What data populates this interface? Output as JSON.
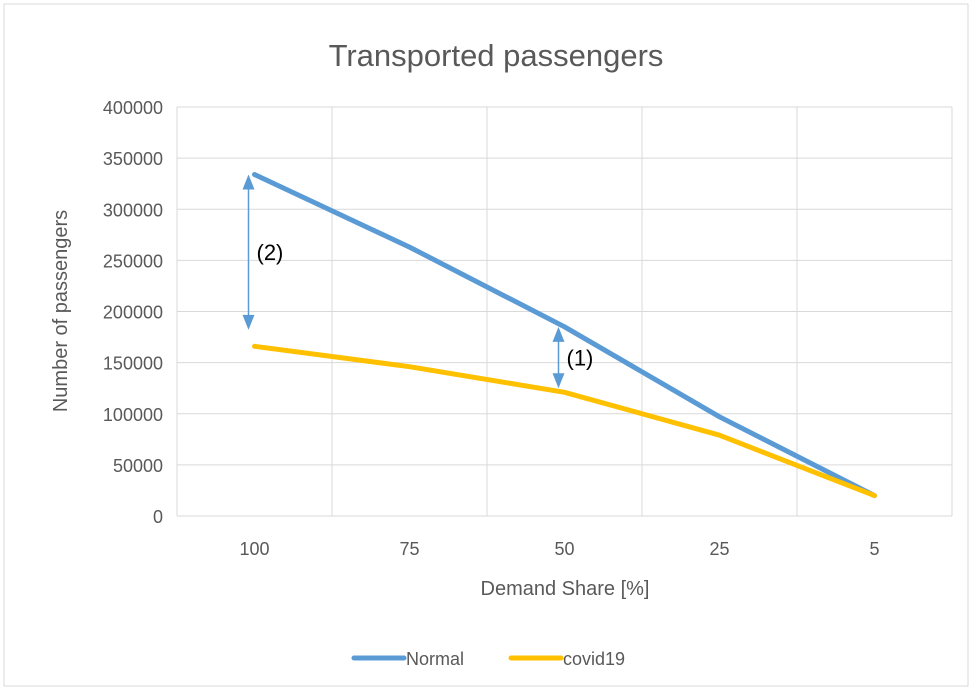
{
  "chart_data": {
    "type": "line",
    "title": "Transported passengers",
    "xlabel": "Demand Share [%]",
    "ylabel": "Number of passengers",
    "categories": [
      "100",
      "75",
      "50",
      "25",
      "5"
    ],
    "ylim": [
      0,
      400000
    ],
    "yticks": [
      0,
      50000,
      100000,
      150000,
      200000,
      250000,
      300000,
      350000,
      400000
    ],
    "grid": true,
    "legend_position": "bottom",
    "series": [
      {
        "name": "Normal",
        "color": "#5B9BD5",
        "values": [
          334000,
          263000,
          185000,
          97000,
          20000
        ]
      },
      {
        "name": "covid19",
        "color": "#FFC000",
        "values": [
          166000,
          146000,
          121000,
          79000,
          20000
        ]
      }
    ],
    "annotations": [
      {
        "label": "(2)",
        "category": "100",
        "y_from": 334000,
        "y_to": 182000
      },
      {
        "label": "(1)",
        "category": "50",
        "y_from": 185000,
        "y_to": 125000
      }
    ],
    "annotation_color": "#5B9BD5"
  }
}
